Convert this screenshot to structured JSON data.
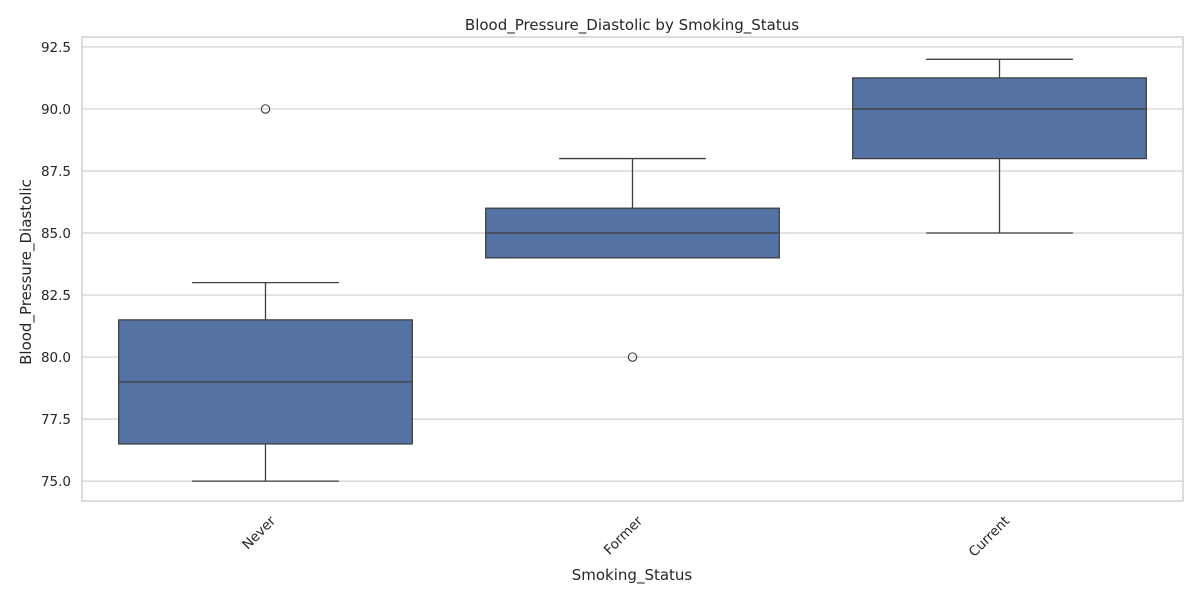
{
  "chart_data": {
    "type": "box",
    "title": "Blood_Pressure_Diastolic by Smoking_Status",
    "xlabel": "Smoking_Status",
    "ylabel": "Blood_Pressure_Diastolic",
    "ylim": [
      74.2,
      92.9
    ],
    "yticks": [
      75.0,
      77.5,
      80.0,
      82.5,
      85.0,
      87.5,
      90.0,
      92.5
    ],
    "ytick_labels": [
      "75.0",
      "77.5",
      "80.0",
      "82.5",
      "85.0",
      "87.5",
      "90.0",
      "92.5"
    ],
    "categories": [
      "Never",
      "Former",
      "Current"
    ],
    "x_tick_rotation_deg": -45,
    "grid": true,
    "colors": {
      "box_fill": "#5572a4",
      "box_edge": "#3f3f3f",
      "grid": "#cfcfcf",
      "frame": "#cfcfcf",
      "text": "#262626"
    },
    "boxes": [
      {
        "category": "Never",
        "whisker_low": 75.0,
        "q1": 76.5,
        "median": 79.0,
        "q3": 81.5,
        "whisker_high": 83.0,
        "outliers": [
          90.0
        ]
      },
      {
        "category": "Former",
        "whisker_low": 84.0,
        "q1": 84.0,
        "median": 85.0,
        "q3": 86.0,
        "whisker_high": 88.0,
        "outliers": [
          80.0
        ]
      },
      {
        "category": "Current",
        "whisker_low": 85.0,
        "q1": 88.0,
        "median": 90.0,
        "q3": 91.25,
        "whisker_high": 92.0,
        "outliers": []
      }
    ]
  }
}
